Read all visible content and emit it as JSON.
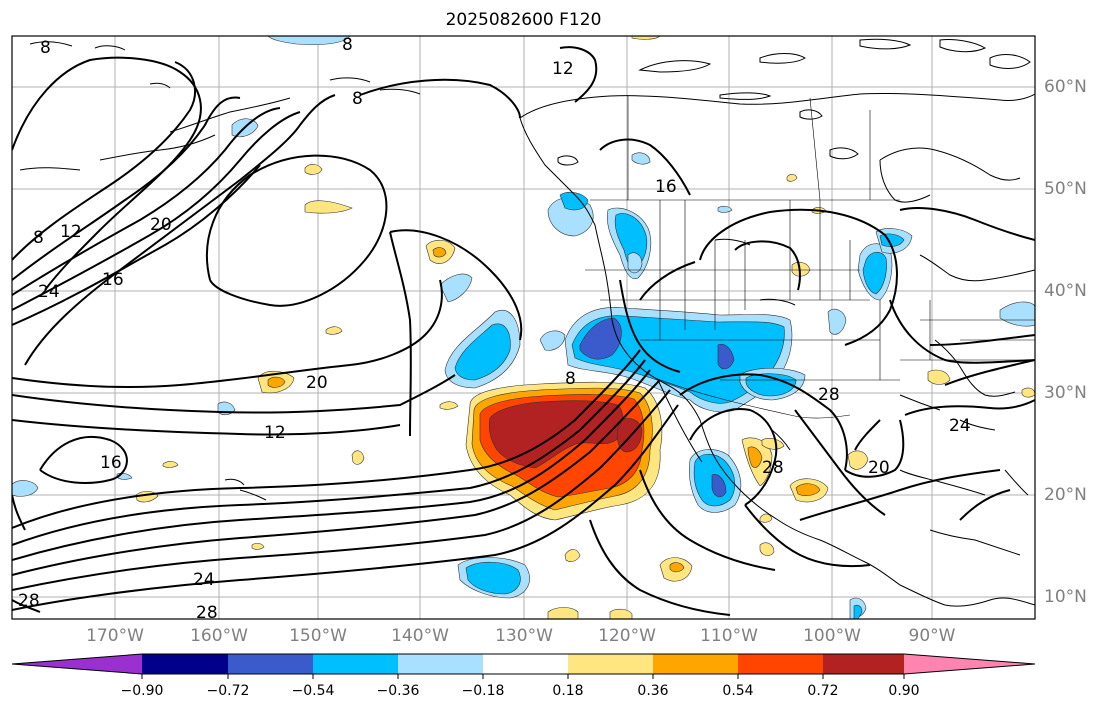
{
  "title": "2025082600 F120",
  "lon_labels": [
    "170°W",
    "160°W",
    "150°W",
    "140°W",
    "130°W",
    "120°W",
    "110°W",
    "100°W",
    "90°W"
  ],
  "lat_labels": [
    "60°N",
    "50°N",
    "40°N",
    "30°N",
    "20°N",
    "10°N"
  ],
  "contour_labels": [
    "8",
    "8",
    "12",
    "8",
    "16",
    "8",
    "12",
    "20",
    "24",
    "16",
    "20",
    "12",
    "16",
    "28",
    "8",
    "28",
    "24",
    "20",
    "24",
    "28",
    "28"
  ],
  "colorbar": {
    "ticks": [
      "−0.90",
      "−0.72",
      "−0.54",
      "−0.36",
      "−0.18",
      "0.18",
      "0.36",
      "0.54",
      "0.72",
      "0.90"
    ],
    "colors": [
      "#9b30d0",
      "#00008b",
      "#3b5bcc",
      "#00bfff",
      "#a9dfff",
      "#ffffff",
      "#ffe680",
      "#ffa500",
      "#ff4500",
      "#b22222",
      "#ff85b0"
    ]
  },
  "anomaly_colors": {
    "neg_1": "#a9dfff",
    "neg_2": "#00bfff",
    "neg_3": "#3b5bcc",
    "pos_1": "#ffe680",
    "pos_2": "#ffa500",
    "pos_3": "#ff4500",
    "pos_4": "#b22222"
  }
}
